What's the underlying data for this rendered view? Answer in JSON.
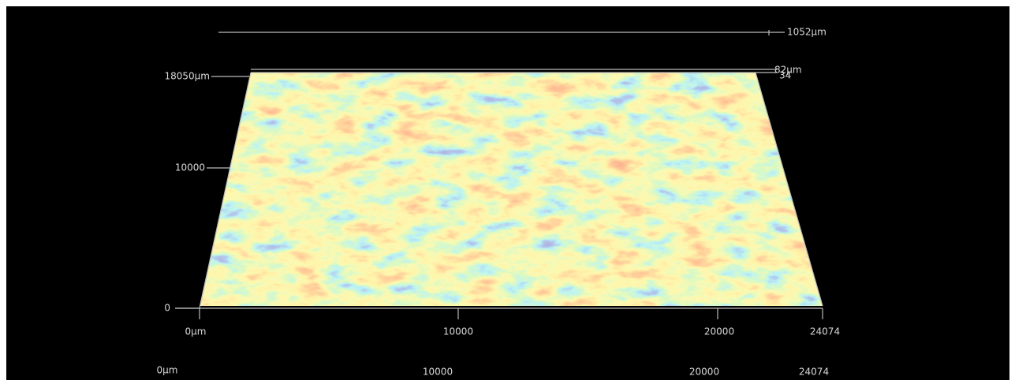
{
  "z_scale": {
    "label": "1052µm"
  },
  "top_labels": [
    "82µm",
    "34"
  ],
  "y_axis": {
    "labels": [
      "18050µm",
      "10000",
      "0"
    ]
  },
  "x_axis": {
    "labels": [
      "0µm",
      "10000",
      "20000",
      "24074"
    ]
  },
  "bottom_axis": {
    "labels": [
      "0µm",
      "10000",
      "20000",
      "24074"
    ]
  }
}
